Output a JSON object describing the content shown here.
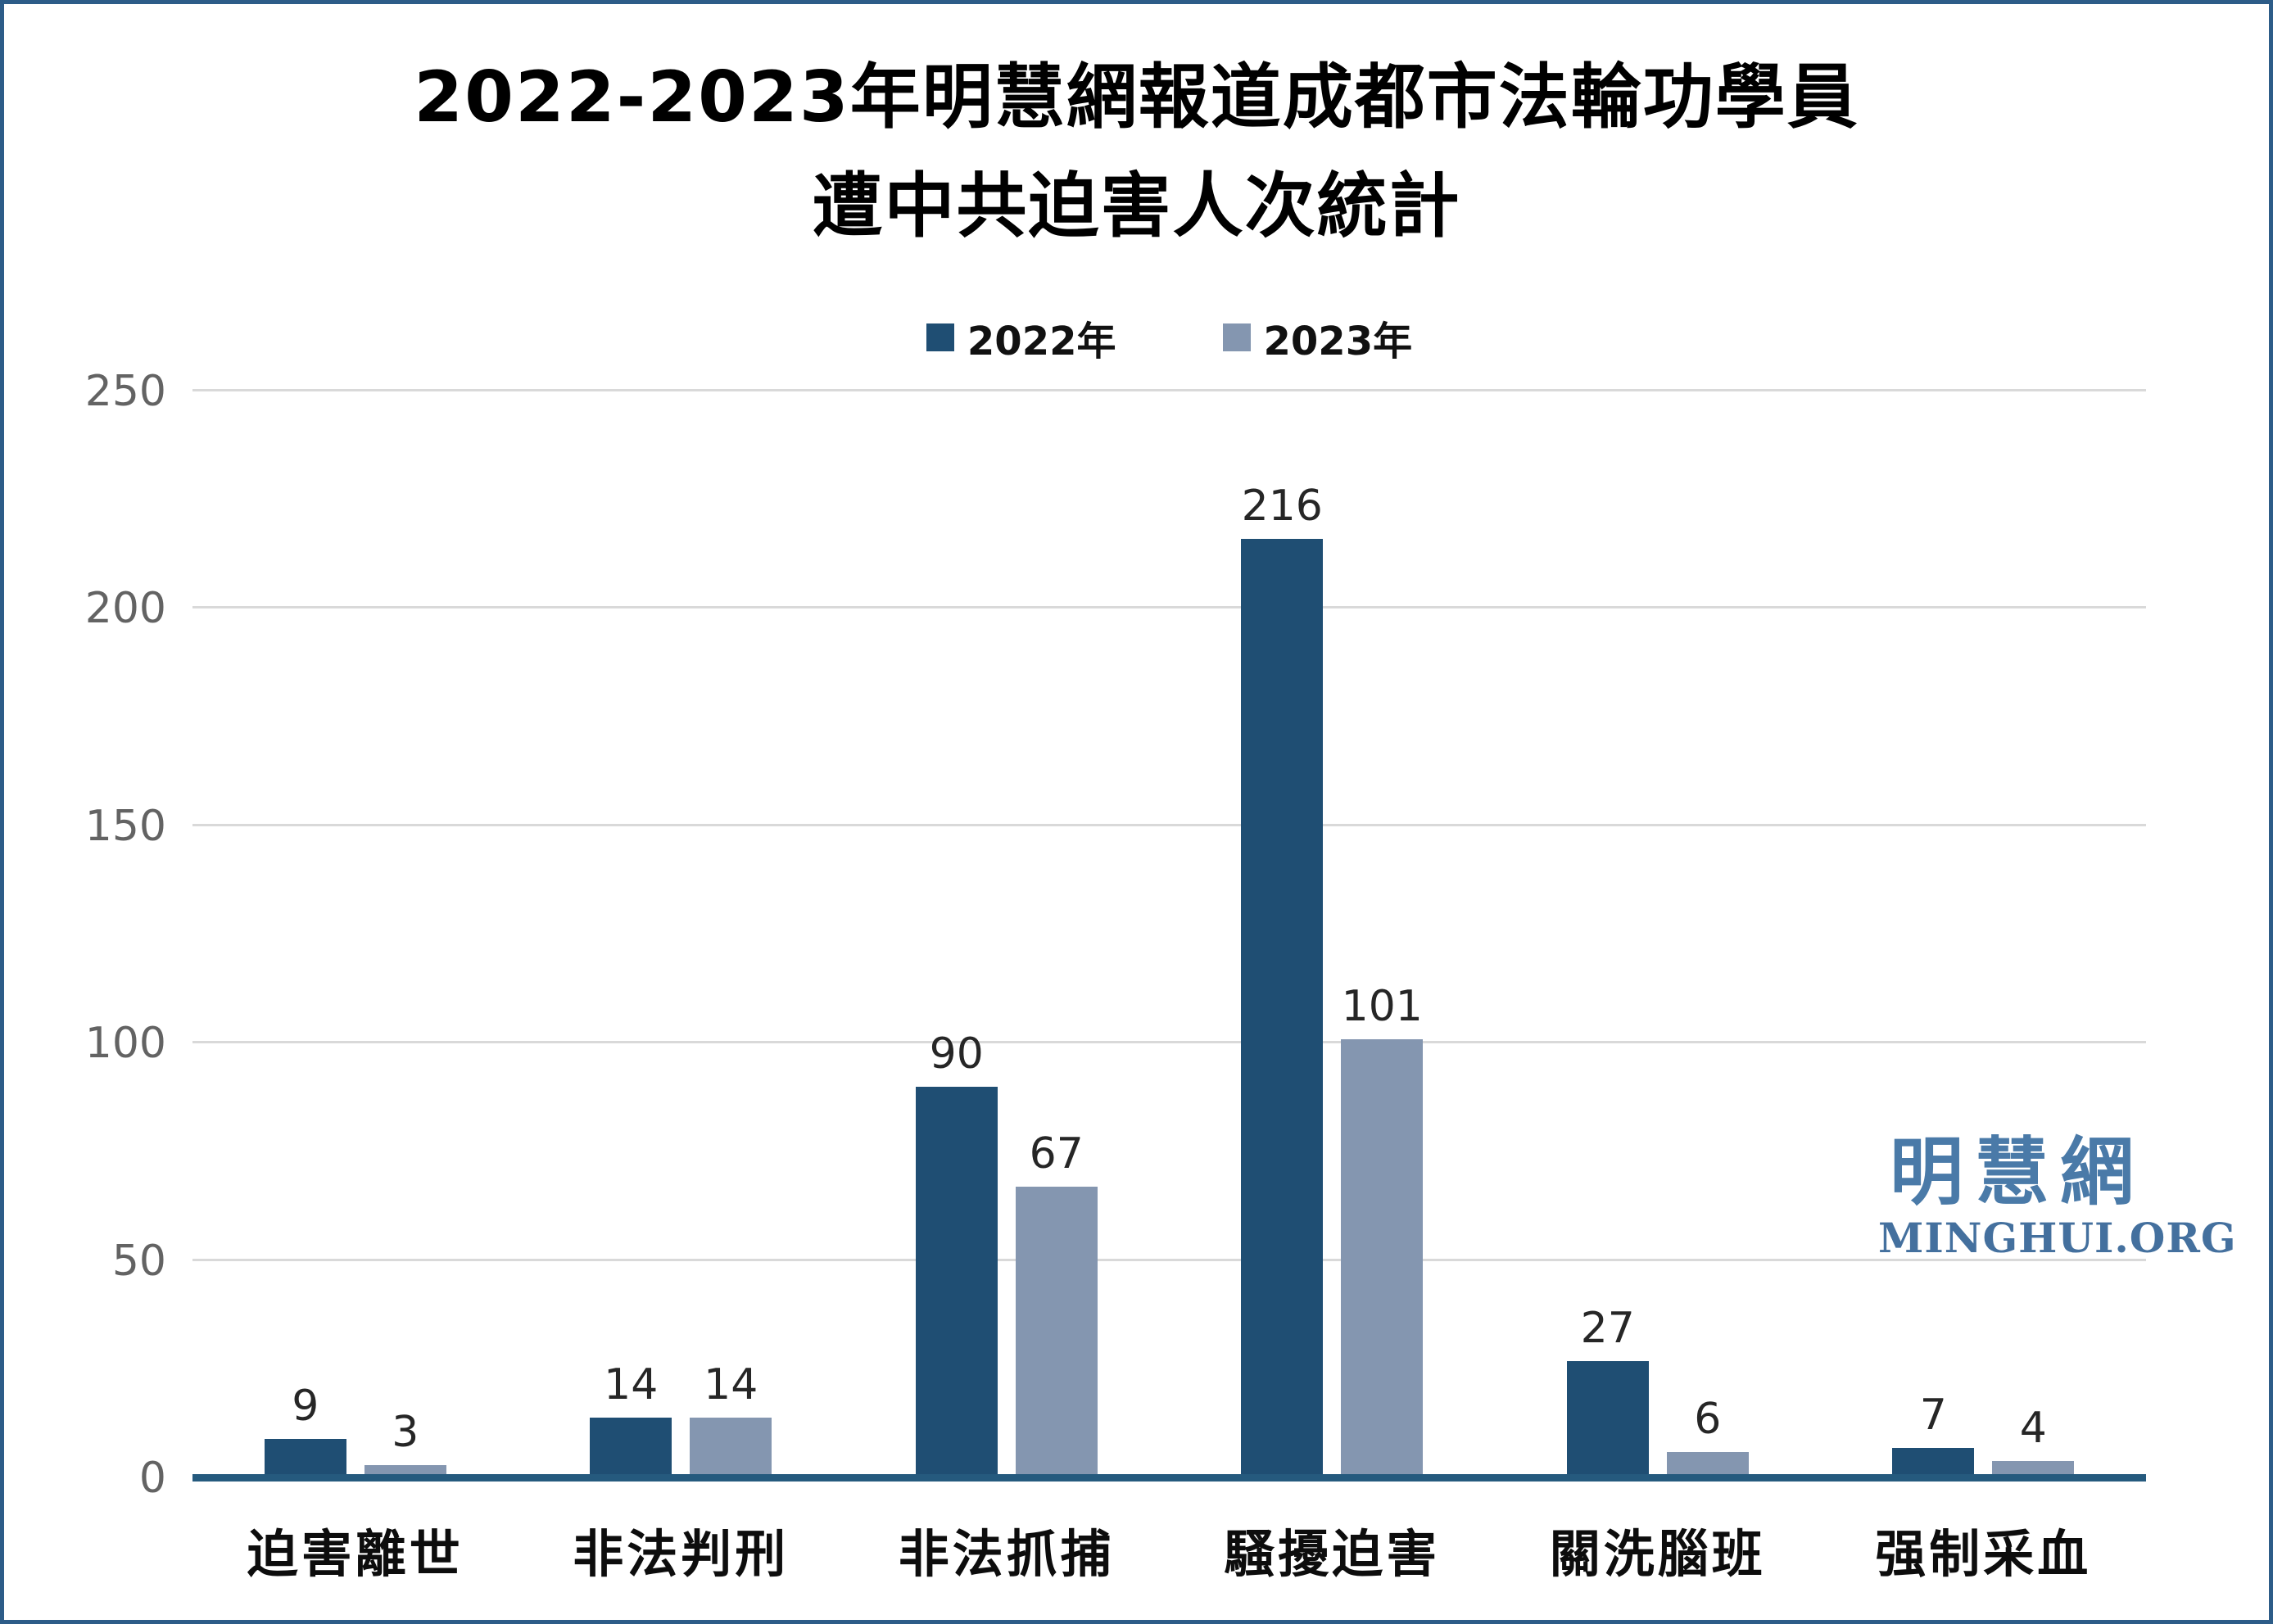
{
  "title": {
    "line1": "2022-2023年明慧網報道成都市法輪功學員",
    "line2": "遭中共迫害人次統計"
  },
  "watermark": {
    "cjk": "明慧網",
    "latin": "MINGHUI.ORG"
  },
  "colors": {
    "series_2022": "#1f4e73",
    "series_2023": "#8496b0",
    "axis_line": "#255a7e",
    "gridline": "#d9d9d9",
    "tick_label": "#636363",
    "value_label": "#262626",
    "frame_border": "#2d5c88",
    "watermark_blue": "#4a7aa8"
  },
  "chart_data": {
    "type": "bar",
    "title": "2022-2023年明慧網報道成都市法輪功學員遭中共迫害人次統計",
    "categories": [
      "迫害離世",
      "非法判刑",
      "非法抓捕",
      "騷擾迫害",
      "關洗腦班",
      "强制采血"
    ],
    "series": [
      {
        "name": "2022年",
        "color": "#1f4e73",
        "values": [
          9,
          14,
          90,
          216,
          27,
          7
        ]
      },
      {
        "name": "2023年",
        "color": "#8496b0",
        "values": [
          3,
          14,
          67,
          101,
          6,
          4
        ]
      }
    ],
    "xlabel": "",
    "ylabel": "",
    "ylim": [
      0,
      250
    ],
    "yticks": [
      0,
      50,
      100,
      150,
      200,
      250
    ],
    "grid": true,
    "legend_position": "top",
    "value_labels_shown": true
  }
}
